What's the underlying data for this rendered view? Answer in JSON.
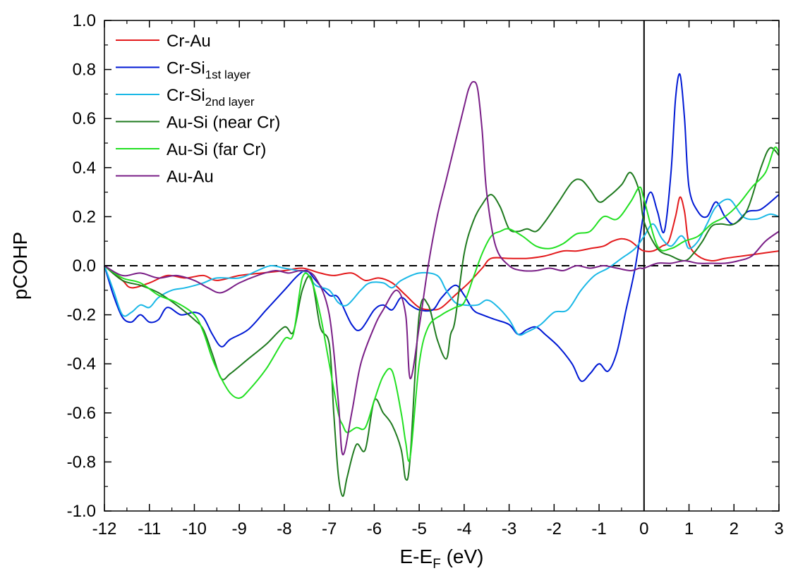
{
  "chart_data": {
    "type": "line",
    "xlabel": {
      "main": "E-E",
      "sub": "F",
      "suffix": " (eV)"
    },
    "ylabel": "pCOHP",
    "xlim": [
      -12,
      3
    ],
    "ylim": [
      -1.0,
      1.0
    ],
    "xticks": [
      -12,
      -11,
      -10,
      -9,
      -8,
      -7,
      -6,
      -5,
      -4,
      -3,
      -2,
      -1,
      0,
      1,
      2,
      3
    ],
    "xtick_labels": [
      "-12",
      "-11",
      "-10",
      "-9",
      "-8",
      "-7",
      "-6",
      "-5",
      "-4",
      "-3",
      "-2",
      "-1",
      "0",
      "1",
      "2",
      "3"
    ],
    "yticks": [
      -1.0,
      -0.8,
      -0.6,
      -0.4,
      -0.2,
      0.0,
      0.2,
      0.4,
      0.6,
      0.8,
      1.0
    ],
    "ytick_labels": [
      "-1.0",
      "-0.8",
      "-0.6",
      "-0.4",
      "-0.2",
      "0.0",
      "0.2",
      "0.4",
      "0.6",
      "0.8",
      "1.0"
    ],
    "reference_lines": {
      "horizontal_dashed_y": 0.0,
      "vertical_solid_x": 0.0
    },
    "legend_position": "top-left",
    "series": [
      {
        "name": "Cr-Au",
        "name_sub": "",
        "color": "#e31a1c",
        "x": [
          -12,
          -11.6,
          -11.4,
          -11.0,
          -10.6,
          -10.2,
          -9.8,
          -9.5,
          -9.0,
          -8.5,
          -8.0,
          -7.6,
          -7.2,
          -6.9,
          -6.5,
          -6.2,
          -5.9,
          -5.6,
          -5.3,
          -5.0,
          -4.7,
          -4.5,
          -4.2,
          -3.9,
          -3.6,
          -3.4,
          -3.0,
          -2.6,
          -2.2,
          -1.8,
          -1.5,
          -1.2,
          -0.9,
          -0.7,
          -0.5,
          -0.3,
          -0.1,
          0.0,
          0.2,
          0.4,
          0.55,
          0.7,
          0.8,
          0.9,
          1.0,
          1.2,
          1.5,
          1.8,
          2.2,
          2.6,
          3.0
        ],
        "y": [
          0,
          -0.06,
          -0.09,
          -0.07,
          -0.04,
          -0.05,
          -0.04,
          -0.06,
          -0.04,
          -0.03,
          -0.02,
          -0.01,
          -0.03,
          -0.04,
          -0.03,
          -0.06,
          -0.05,
          -0.07,
          -0.12,
          -0.17,
          -0.18,
          -0.17,
          -0.12,
          -0.07,
          -0.01,
          0.03,
          0.03,
          0.03,
          0.04,
          0.06,
          0.06,
          0.07,
          0.08,
          0.1,
          0.11,
          0.1,
          0.07,
          0.06,
          0.06,
          0.08,
          0.1,
          0.2,
          0.28,
          0.22,
          0.09,
          0.04,
          0.02,
          0.03,
          0.04,
          0.05,
          0.06
        ]
      },
      {
        "name": "Cr-Si",
        "name_sub": "1st layer",
        "color": "#0019d4",
        "x": [
          -12,
          -11.8,
          -11.6,
          -11.4,
          -11.2,
          -11.0,
          -10.8,
          -10.6,
          -10.3,
          -10.0,
          -9.8,
          -9.6,
          -9.4,
          -9.2,
          -8.8,
          -8.4,
          -8.0,
          -7.7,
          -7.5,
          -7.3,
          -7.0,
          -6.8,
          -6.5,
          -6.3,
          -6.0,
          -5.8,
          -5.6,
          -5.4,
          -5.2,
          -5.0,
          -4.7,
          -4.5,
          -4.2,
          -4.0,
          -3.8,
          -3.6,
          -3.3,
          -3.0,
          -2.8,
          -2.6,
          -2.4,
          -2.2,
          -1.9,
          -1.6,
          -1.4,
          -1.2,
          -1.0,
          -0.8,
          -0.6,
          -0.4,
          -0.2,
          0.0,
          0.15,
          0.3,
          0.45,
          0.6,
          0.7,
          0.8,
          0.9,
          1.0,
          1.2,
          1.4,
          1.6,
          1.8,
          2.0,
          2.3,
          2.6,
          3.0
        ],
        "y": [
          0,
          -0.12,
          -0.21,
          -0.23,
          -0.2,
          -0.23,
          -0.22,
          -0.17,
          -0.2,
          -0.19,
          -0.21,
          -0.28,
          -0.33,
          -0.3,
          -0.26,
          -0.18,
          -0.1,
          -0.04,
          -0.02,
          -0.06,
          -0.12,
          -0.13,
          -0.24,
          -0.26,
          -0.18,
          -0.16,
          -0.18,
          -0.13,
          -0.16,
          -0.18,
          -0.18,
          -0.13,
          -0.08,
          -0.12,
          -0.18,
          -0.2,
          -0.22,
          -0.24,
          -0.28,
          -0.26,
          -0.25,
          -0.28,
          -0.33,
          -0.4,
          -0.47,
          -0.44,
          -0.4,
          -0.43,
          -0.35,
          -0.18,
          -0.01,
          0.22,
          0.3,
          0.22,
          0.14,
          0.38,
          0.68,
          0.78,
          0.6,
          0.32,
          0.22,
          0.2,
          0.26,
          0.2,
          0.17,
          0.22,
          0.23,
          0.29
        ]
      },
      {
        "name": "Cr-Si",
        "name_sub": "2nd layer",
        "color": "#1ab8e6",
        "x": [
          -12,
          -11.8,
          -11.6,
          -11.4,
          -11.2,
          -11.0,
          -10.8,
          -10.5,
          -10.2,
          -9.8,
          -9.5,
          -9.0,
          -8.6,
          -8.3,
          -8.0,
          -7.7,
          -7.5,
          -7.3,
          -7.0,
          -6.8,
          -6.6,
          -6.3,
          -6.1,
          -5.8,
          -5.6,
          -5.4,
          -5.0,
          -4.6,
          -4.4,
          -4.2,
          -4.0,
          -3.7,
          -3.5,
          -3.3,
          -3.0,
          -2.8,
          -2.6,
          -2.3,
          -2.0,
          -1.7,
          -1.4,
          -1.1,
          -0.8,
          -0.5,
          -0.2,
          0.0,
          0.2,
          0.4,
          0.6,
          0.8,
          0.9,
          1.0,
          1.2,
          1.4,
          1.6,
          1.9,
          2.2,
          2.5,
          2.8,
          3.0
        ],
        "y": [
          0,
          -0.1,
          -0.2,
          -0.19,
          -0.16,
          -0.17,
          -0.13,
          -0.1,
          -0.09,
          -0.07,
          -0.05,
          -0.05,
          -0.02,
          0.0,
          -0.01,
          -0.02,
          -0.03,
          -0.08,
          -0.1,
          -0.15,
          -0.16,
          -0.1,
          -0.07,
          -0.07,
          -0.09,
          -0.06,
          -0.03,
          -0.04,
          -0.1,
          -0.15,
          -0.16,
          -0.16,
          -0.14,
          -0.16,
          -0.22,
          -0.28,
          -0.27,
          -0.24,
          -0.19,
          -0.18,
          -0.1,
          -0.04,
          -0.01,
          0.03,
          0.07,
          0.12,
          0.17,
          0.11,
          0.08,
          0.12,
          0.11,
          0.07,
          0.1,
          0.17,
          0.24,
          0.27,
          0.2,
          0.19,
          0.21,
          0.2
        ]
      },
      {
        "name": "Au-Si (near Cr)",
        "name_sub": "",
        "color": "#1f7a1f",
        "x": [
          -12,
          -11.6,
          -11.2,
          -10.8,
          -10.4,
          -10.0,
          -9.8,
          -9.6,
          -9.4,
          -9.2,
          -8.8,
          -8.4,
          -8.0,
          -7.8,
          -7.6,
          -7.4,
          -7.2,
          -7.0,
          -6.9,
          -6.8,
          -6.7,
          -6.6,
          -6.4,
          -6.2,
          -6.0,
          -5.8,
          -5.6,
          -5.4,
          -5.3,
          -5.2,
          -5.0,
          -4.8,
          -4.6,
          -4.4,
          -4.3,
          -4.2,
          -4.0,
          -3.8,
          -3.6,
          -3.4,
          -3.2,
          -3.0,
          -2.8,
          -2.6,
          -2.4,
          -2.2,
          -1.9,
          -1.6,
          -1.4,
          -1.2,
          -1.0,
          -0.8,
          -0.5,
          -0.3,
          -0.1,
          0.0,
          0.3,
          0.6,
          0.9,
          1.1,
          1.3,
          1.5,
          1.7,
          2.0,
          2.3,
          2.6,
          2.8,
          3.0
        ],
        "y": [
          0,
          -0.06,
          -0.08,
          -0.11,
          -0.16,
          -0.22,
          -0.26,
          -0.36,
          -0.46,
          -0.44,
          -0.38,
          -0.32,
          -0.25,
          -0.27,
          -0.1,
          -0.05,
          -0.25,
          -0.32,
          -0.6,
          -0.85,
          -0.94,
          -0.86,
          -0.73,
          -0.75,
          -0.55,
          -0.6,
          -0.65,
          -0.75,
          -0.87,
          -0.78,
          -0.2,
          -0.16,
          -0.3,
          -0.38,
          -0.28,
          -0.22,
          0.05,
          0.18,
          0.25,
          0.29,
          0.24,
          0.15,
          0.14,
          0.15,
          0.14,
          0.18,
          0.26,
          0.34,
          0.35,
          0.31,
          0.26,
          0.28,
          0.33,
          0.38,
          0.3,
          0.18,
          0.07,
          0.04,
          0.02,
          0.05,
          0.1,
          0.16,
          0.17,
          0.17,
          0.23,
          0.4,
          0.48,
          0.45
        ]
      },
      {
        "name": "Au-Si (far Cr)",
        "name_sub": "",
        "color": "#22e022",
        "x": [
          -12,
          -11.6,
          -11.2,
          -10.8,
          -10.4,
          -10.0,
          -9.8,
          -9.6,
          -9.4,
          -9.2,
          -9.0,
          -8.8,
          -8.4,
          -8.0,
          -7.8,
          -7.6,
          -7.4,
          -7.2,
          -7.0,
          -6.8,
          -6.7,
          -6.6,
          -6.4,
          -6.2,
          -6.0,
          -5.8,
          -5.6,
          -5.4,
          -5.3,
          -5.2,
          -5.0,
          -4.8,
          -4.5,
          -4.2,
          -4.0,
          -3.8,
          -3.6,
          -3.4,
          -3.2,
          -3.0,
          -2.7,
          -2.4,
          -2.1,
          -1.8,
          -1.5,
          -1.2,
          -0.9,
          -0.6,
          -0.3,
          -0.1,
          0.0,
          0.3,
          0.6,
          0.9,
          1.2,
          1.5,
          1.8,
          2.1,
          2.4,
          2.7,
          2.9,
          3.0
        ],
        "y": [
          0,
          -0.05,
          -0.07,
          -0.12,
          -0.15,
          -0.2,
          -0.27,
          -0.38,
          -0.46,
          -0.52,
          -0.54,
          -0.51,
          -0.42,
          -0.3,
          -0.28,
          -0.05,
          -0.06,
          -0.2,
          -0.4,
          -0.6,
          -0.65,
          -0.68,
          -0.66,
          -0.66,
          -0.55,
          -0.45,
          -0.43,
          -0.6,
          -0.72,
          -0.78,
          -0.4,
          -0.25,
          -0.2,
          -0.17,
          -0.15,
          -0.05,
          0.05,
          0.12,
          0.14,
          0.15,
          0.12,
          0.08,
          0.07,
          0.09,
          0.13,
          0.14,
          0.2,
          0.19,
          0.26,
          0.32,
          0.27,
          0.08,
          0.07,
          0.1,
          0.12,
          0.17,
          0.2,
          0.25,
          0.32,
          0.38,
          0.48,
          0.46
        ]
      },
      {
        "name": "Au-Au",
        "name_sub": "",
        "color": "#7a1f87",
        "x": [
          -12,
          -11.6,
          -11.2,
          -10.8,
          -10.4,
          -10.0,
          -9.7,
          -9.4,
          -9.0,
          -8.6,
          -8.2,
          -7.9,
          -7.6,
          -7.3,
          -7.0,
          -6.8,
          -6.7,
          -6.5,
          -6.3,
          -6.0,
          -5.8,
          -5.5,
          -5.3,
          -5.2,
          -5.0,
          -4.8,
          -4.6,
          -4.4,
          -4.2,
          -4.0,
          -3.9,
          -3.8,
          -3.7,
          -3.6,
          -3.5,
          -3.3,
          -3.0,
          -2.7,
          -2.4,
          -2.1,
          -1.8,
          -1.5,
          -1.2,
          -0.9,
          -0.6,
          -0.3,
          -0.1,
          0.0,
          0.3,
          0.6,
          0.9,
          1.2,
          1.5,
          1.8,
          2.1,
          2.4,
          2.7,
          3.0
        ],
        "y": [
          0,
          -0.04,
          -0.03,
          -0.05,
          -0.04,
          -0.06,
          -0.09,
          -0.11,
          -0.07,
          -0.04,
          -0.02,
          -0.03,
          -0.02,
          -0.05,
          -0.2,
          -0.55,
          -0.77,
          -0.6,
          -0.4,
          -0.25,
          -0.18,
          -0.1,
          -0.2,
          -0.46,
          -0.25,
          0.0,
          0.2,
          0.35,
          0.5,
          0.65,
          0.72,
          0.75,
          0.72,
          0.55,
          0.3,
          0.08,
          0.0,
          -0.02,
          -0.02,
          -0.01,
          -0.02,
          0.0,
          -0.01,
          0.0,
          -0.01,
          -0.02,
          -0.01,
          -0.01,
          0.01,
          0.01,
          0.02,
          0.01,
          0.01,
          0.01,
          0.02,
          0.04,
          0.1,
          0.14
        ]
      }
    ]
  }
}
